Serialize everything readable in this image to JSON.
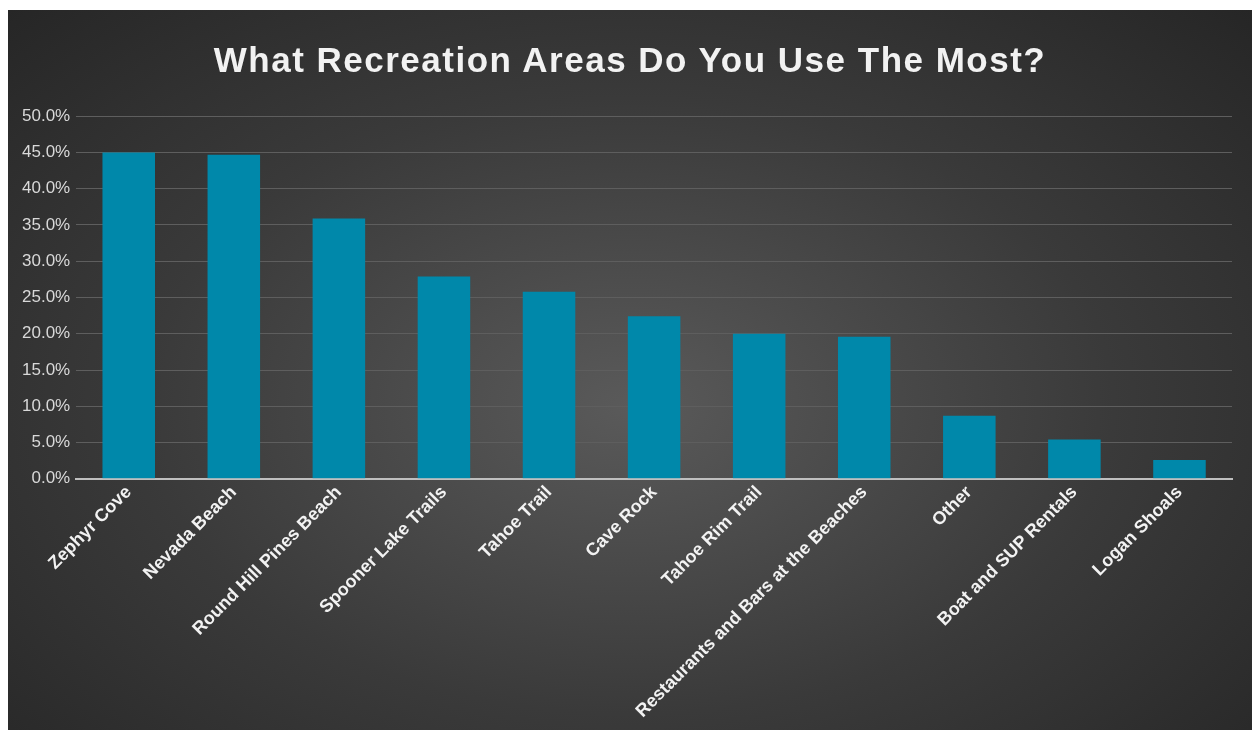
{
  "chart_data": {
    "type": "bar",
    "title": "What Recreation Areas Do You Use The Most?",
    "categories": [
      "Zephyr Cove",
      "Nevada Beach",
      "Round Hill Pines Beach",
      "Spooner Lake Trails",
      "Tahoe Trail",
      "Cave Rock",
      "Tahoe Rim Trail",
      "Restaurants and Bars at the Beaches",
      "Other",
      "Boat and SUP Rentals",
      "Logan Shoals"
    ],
    "values": [
      45.0,
      44.7,
      35.9,
      27.9,
      25.8,
      22.4,
      20.0,
      19.6,
      8.7,
      5.4,
      2.6
    ],
    "color": "#0088aa",
    "ylim": [
      0,
      50
    ],
    "yticks": [
      {
        "value": 0,
        "label": "0.0%"
      },
      {
        "value": 5,
        "label": "5.0%"
      },
      {
        "value": 10,
        "label": "10.0%"
      },
      {
        "value": 15,
        "label": "15.0%"
      },
      {
        "value": 20,
        "label": "20.0%"
      },
      {
        "value": 25,
        "label": "25.0%"
      },
      {
        "value": 30,
        "label": "30.0%"
      },
      {
        "value": 35,
        "label": "35.0%"
      },
      {
        "value": 40,
        "label": "40.0%"
      },
      {
        "value": 45,
        "label": "45.0%"
      },
      {
        "value": 50,
        "label": "50.0%"
      }
    ],
    "grid": "y"
  }
}
